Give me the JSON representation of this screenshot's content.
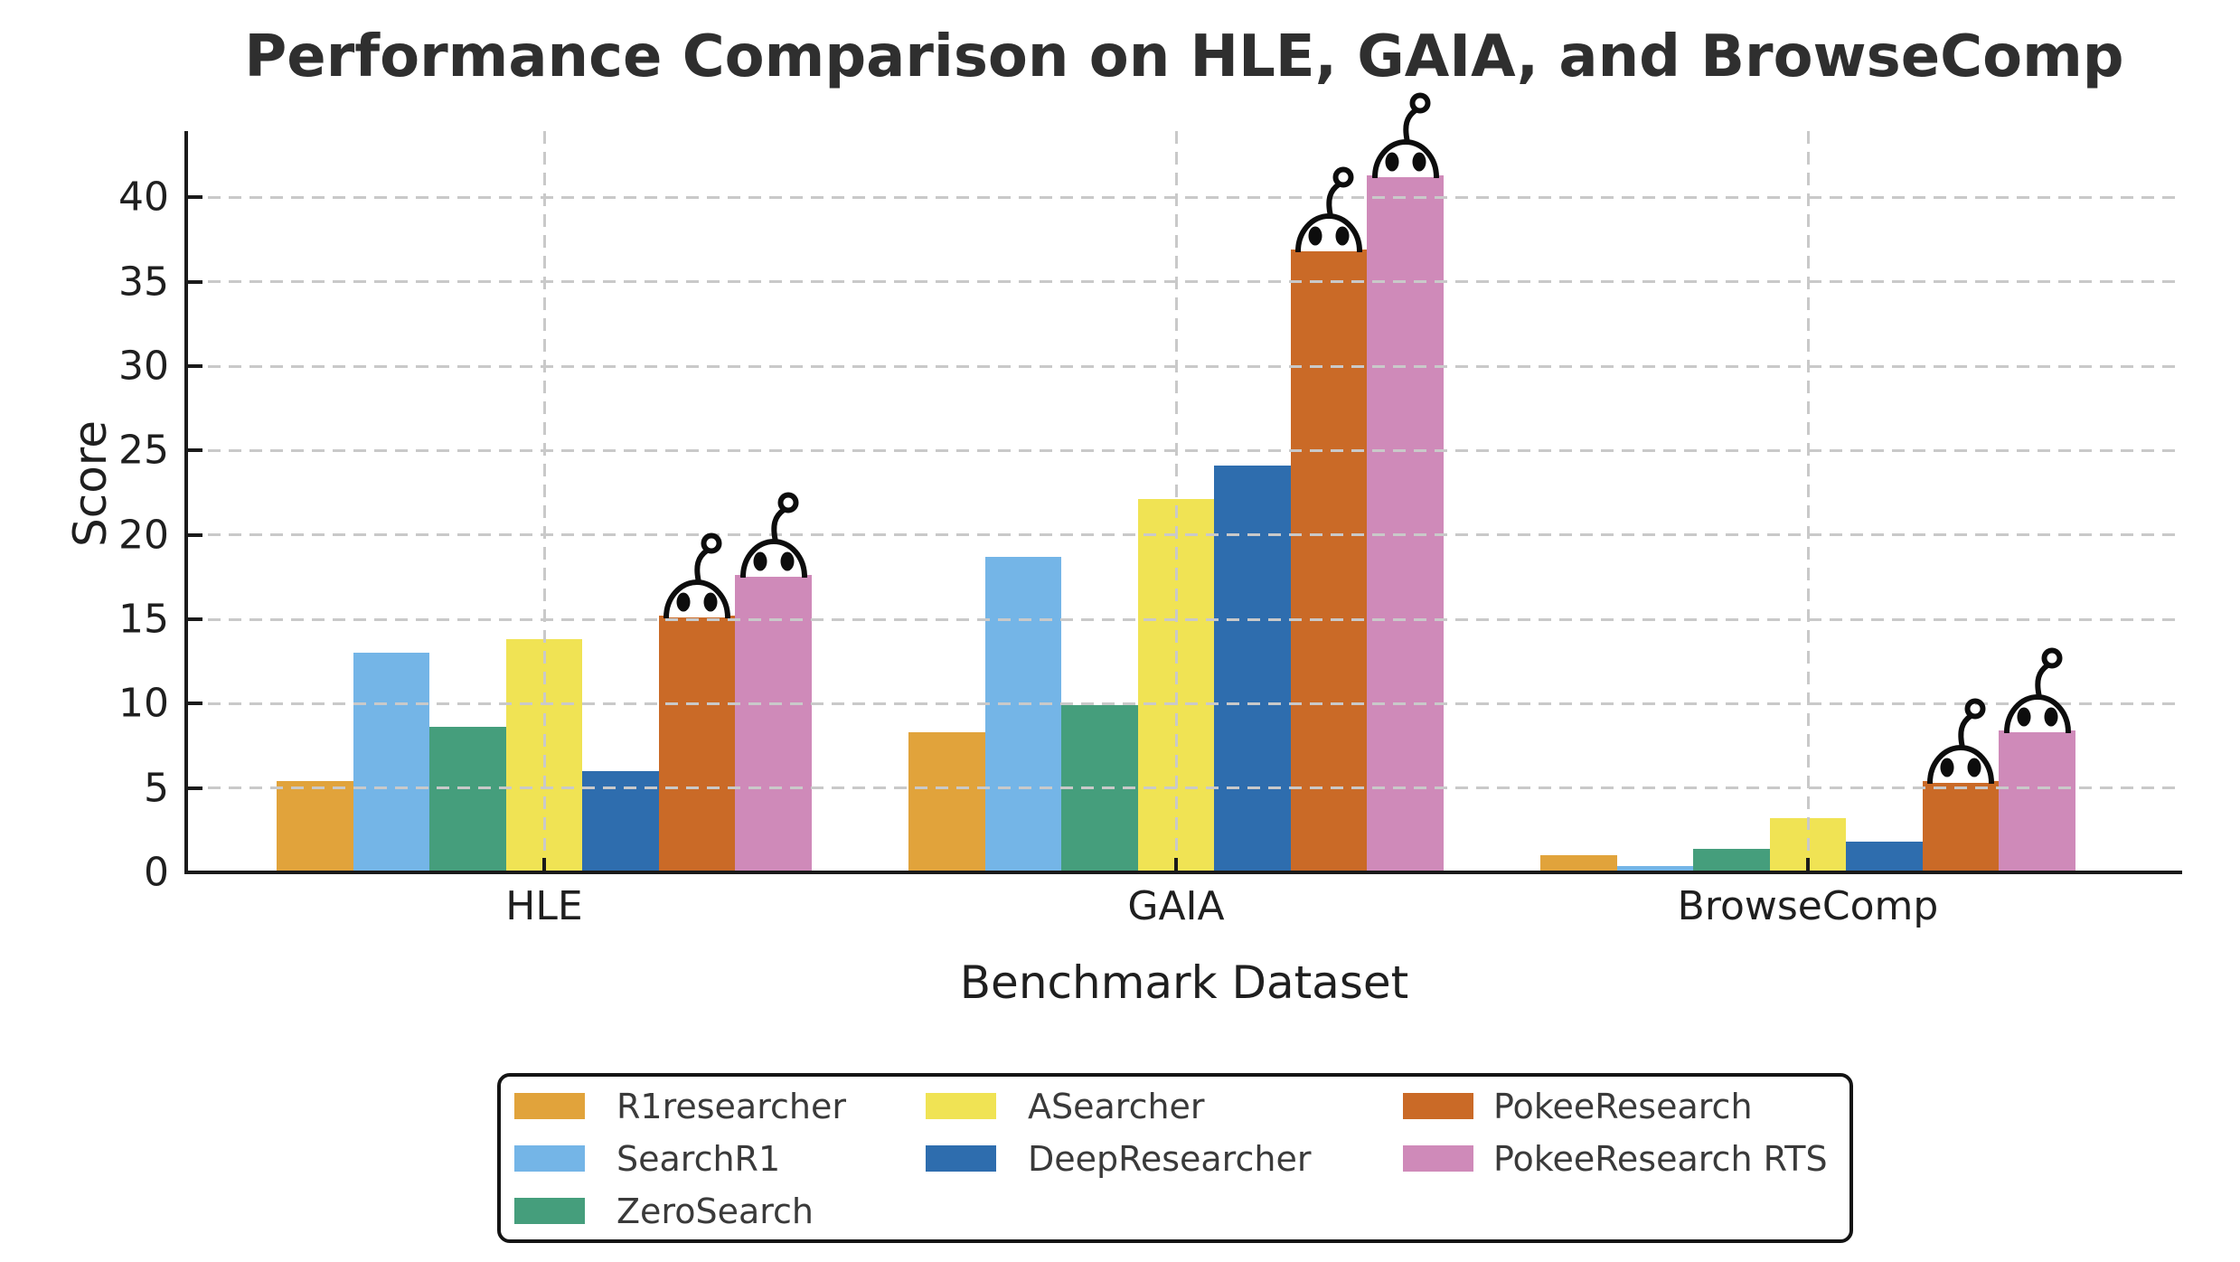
{
  "title": "Performance Comparison on HLE, GAIA, and BrowseComp",
  "chart_data": {
    "type": "bar",
    "title": "Performance Comparison on HLE, GAIA, and BrowseComp",
    "categories": [
      "HLE",
      "GAIA",
      "BrowseComp"
    ],
    "series": [
      {
        "name": "R1researcher",
        "color": "#E1A33B",
        "values": [
          5.4,
          8.3,
          1.0
        ],
        "robot": false
      },
      {
        "name": "SearchR1",
        "color": "#74B5E7",
        "values": [
          13.0,
          18.7,
          0.4
        ],
        "robot": false
      },
      {
        "name": "ZeroSearch",
        "color": "#459E7C",
        "values": [
          8.6,
          9.9,
          1.4
        ],
        "robot": false
      },
      {
        "name": "ASearcher",
        "color": "#F0E354",
        "values": [
          13.8,
          22.1,
          3.2
        ],
        "robot": false
      },
      {
        "name": "DeepResearcher",
        "color": "#2E6DAE",
        "values": [
          6.0,
          24.1,
          1.8
        ],
        "robot": false
      },
      {
        "name": "PokeeResearch",
        "color": "#CA6A27",
        "values": [
          15.2,
          36.9,
          5.4
        ],
        "robot": true
      },
      {
        "name": "PokeeResearch RTS",
        "color": "#CF8AB9",
        "values": [
          17.6,
          41.3,
          8.4
        ],
        "robot": true
      }
    ],
    "xlabel": "Benchmark Dataset",
    "ylabel": "Score",
    "ylim": [
      0,
      44
    ],
    "yticks": [
      0,
      5,
      10,
      15,
      20,
      25,
      30,
      35,
      40
    ],
    "grid": true,
    "gridline_color": "#c9c9c9",
    "legend_position": "bottom",
    "annotations": "robot-face icons above PokeeResearch and PokeeResearch RTS bars"
  }
}
